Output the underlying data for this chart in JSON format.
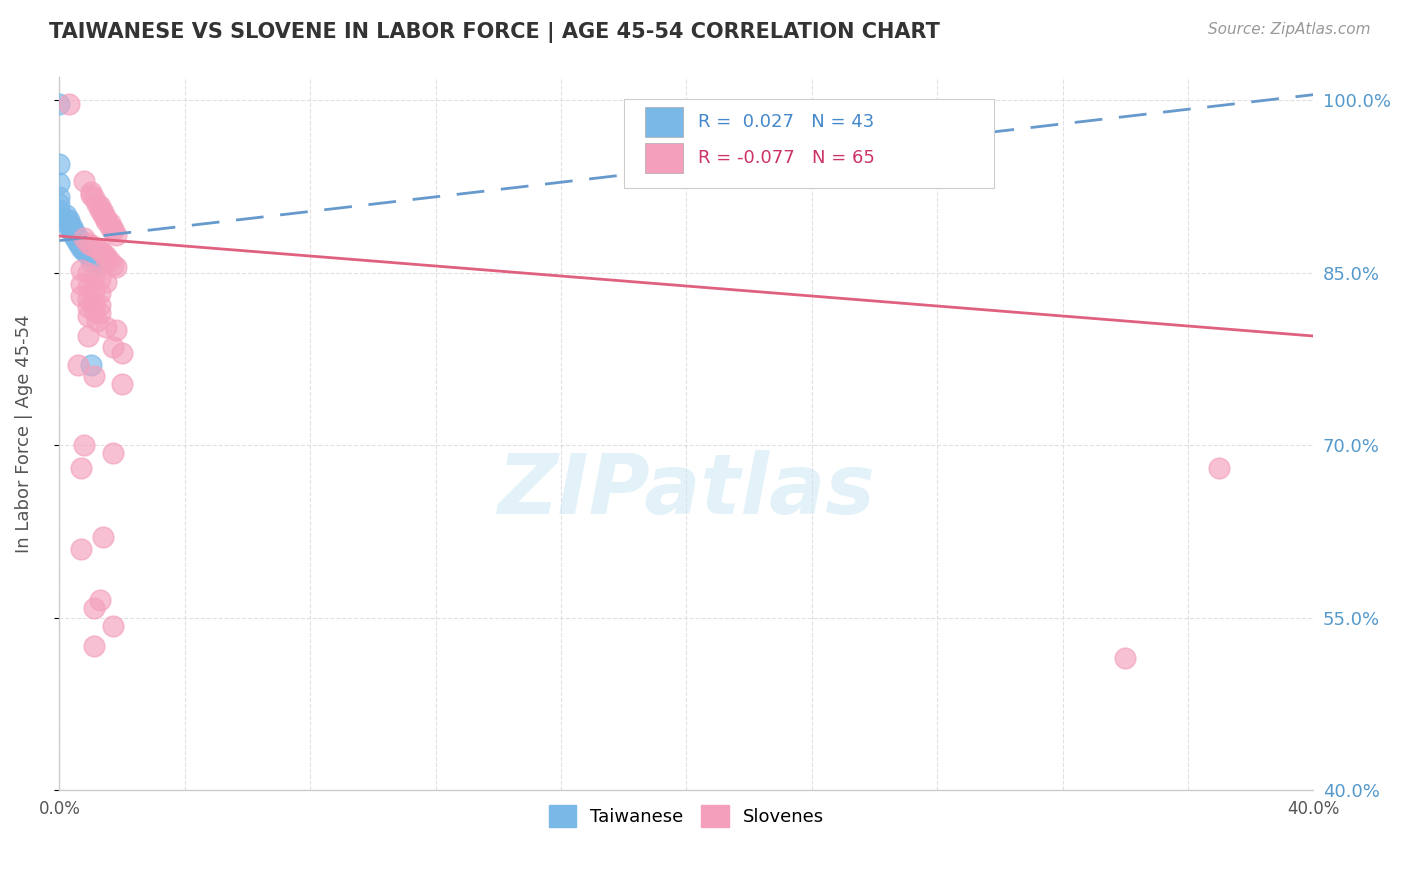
{
  "title": "TAIWANESE VS SLOVENE IN LABOR FORCE | AGE 45-54 CORRELATION CHART",
  "source": "Source: ZipAtlas.com",
  "ylabel": "In Labor Force | Age 45-54",
  "watermark": "ZIPatlas",
  "x_min": 0.0,
  "x_max": 0.4,
  "y_min": 0.4,
  "y_max": 1.02,
  "x_ticks": [
    0.0,
    0.04,
    0.08,
    0.12,
    0.16,
    0.2,
    0.24,
    0.28,
    0.32,
    0.36,
    0.4
  ],
  "x_tick_labels_show": {
    "0.0": "0.0%",
    "0.40": "40.0%"
  },
  "y_ticks": [
    0.4,
    0.55,
    0.7,
    0.85,
    1.0
  ],
  "y_tick_labels": [
    "40.0%",
    "55.0%",
    "70.0%",
    "85.0%",
    "100.0%"
  ],
  "grid_color": "#dddddd",
  "background_color": "#ffffff",
  "taiwanese_color": "#7ab8e8",
  "slovene_color": "#f4a0bc",
  "taiwanese_R": 0.027,
  "slovene_R": -0.077,
  "taiwanese_N": 43,
  "slovene_N": 65,
  "taiwanese_points": [
    [
      0.0,
      0.997
    ],
    [
      0.0,
      0.945
    ],
    [
      0.0,
      0.928
    ],
    [
      0.0,
      0.916
    ],
    [
      0.0,
      0.91
    ],
    [
      0.0,
      0.905
    ],
    [
      0.0,
      0.9
    ],
    [
      0.002,
      0.9
    ],
    [
      0.002,
      0.897
    ],
    [
      0.003,
      0.896
    ],
    [
      0.003,
      0.893
    ],
    [
      0.003,
      0.892
    ],
    [
      0.003,
      0.89
    ],
    [
      0.004,
      0.89
    ],
    [
      0.004,
      0.888
    ],
    [
      0.004,
      0.887
    ],
    [
      0.004,
      0.886
    ],
    [
      0.004,
      0.885
    ],
    [
      0.005,
      0.885
    ],
    [
      0.005,
      0.884
    ],
    [
      0.005,
      0.883
    ],
    [
      0.005,
      0.882
    ],
    [
      0.005,
      0.881
    ],
    [
      0.005,
      0.88
    ],
    [
      0.006,
      0.88
    ],
    [
      0.006,
      0.879
    ],
    [
      0.006,
      0.878
    ],
    [
      0.006,
      0.877
    ],
    [
      0.006,
      0.876
    ],
    [
      0.007,
      0.876
    ],
    [
      0.007,
      0.875
    ],
    [
      0.007,
      0.874
    ],
    [
      0.007,
      0.872
    ],
    [
      0.008,
      0.872
    ],
    [
      0.008,
      0.87
    ],
    [
      0.008,
      0.869
    ],
    [
      0.009,
      0.868
    ],
    [
      0.009,
      0.867
    ],
    [
      0.009,
      0.866
    ],
    [
      0.01,
      0.865
    ],
    [
      0.01,
      0.86
    ],
    [
      0.012,
      0.858
    ],
    [
      0.01,
      0.77
    ]
  ],
  "slovene_points": [
    [
      0.003,
      0.997
    ],
    [
      0.008,
      0.93
    ],
    [
      0.01,
      0.92
    ],
    [
      0.01,
      0.918
    ],
    [
      0.011,
      0.915
    ],
    [
      0.012,
      0.91
    ],
    [
      0.013,
      0.908
    ],
    [
      0.013,
      0.905
    ],
    [
      0.014,
      0.903
    ],
    [
      0.014,
      0.9
    ],
    [
      0.015,
      0.898
    ],
    [
      0.015,
      0.895
    ],
    [
      0.016,
      0.893
    ],
    [
      0.016,
      0.89
    ],
    [
      0.017,
      0.888
    ],
    [
      0.017,
      0.886
    ],
    [
      0.018,
      0.883
    ],
    [
      0.008,
      0.88
    ],
    [
      0.009,
      0.876
    ],
    [
      0.01,
      0.874
    ],
    [
      0.012,
      0.872
    ],
    [
      0.013,
      0.87
    ],
    [
      0.014,
      0.867
    ],
    [
      0.015,
      0.865
    ],
    [
      0.015,
      0.862
    ],
    [
      0.016,
      0.86
    ],
    [
      0.017,
      0.857
    ],
    [
      0.018,
      0.855
    ],
    [
      0.007,
      0.852
    ],
    [
      0.009,
      0.85
    ],
    [
      0.011,
      0.847
    ],
    [
      0.013,
      0.845
    ],
    [
      0.015,
      0.842
    ],
    [
      0.007,
      0.84
    ],
    [
      0.009,
      0.838
    ],
    [
      0.011,
      0.835
    ],
    [
      0.013,
      0.832
    ],
    [
      0.007,
      0.83
    ],
    [
      0.009,
      0.827
    ],
    [
      0.011,
      0.825
    ],
    [
      0.013,
      0.822
    ],
    [
      0.009,
      0.82
    ],
    [
      0.011,
      0.817
    ],
    [
      0.013,
      0.815
    ],
    [
      0.009,
      0.812
    ],
    [
      0.012,
      0.808
    ],
    [
      0.015,
      0.803
    ],
    [
      0.018,
      0.8
    ],
    [
      0.009,
      0.795
    ],
    [
      0.017,
      0.785
    ],
    [
      0.02,
      0.78
    ],
    [
      0.006,
      0.77
    ],
    [
      0.011,
      0.76
    ],
    [
      0.02,
      0.753
    ],
    [
      0.008,
      0.7
    ],
    [
      0.017,
      0.693
    ],
    [
      0.007,
      0.68
    ],
    [
      0.014,
      0.62
    ],
    [
      0.007,
      0.61
    ],
    [
      0.37,
      0.68
    ],
    [
      0.013,
      0.565
    ],
    [
      0.011,
      0.558
    ],
    [
      0.017,
      0.543
    ],
    [
      0.011,
      0.525
    ],
    [
      0.34,
      0.515
    ]
  ]
}
